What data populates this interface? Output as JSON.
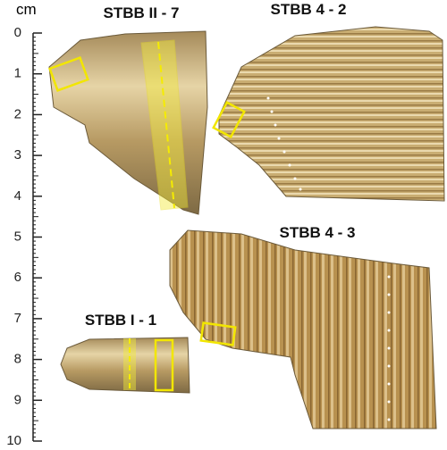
{
  "scale": {
    "unit": "cm",
    "ticks": [
      0,
      1,
      2,
      3,
      4,
      5,
      6,
      7,
      8,
      9,
      10
    ]
  },
  "samples": [
    {
      "label": "STBB II - 7"
    },
    {
      "label": "STBB 4 - 2"
    },
    {
      "label": "STBB 4 - 3"
    },
    {
      "label": "STBB I - 1"
    }
  ]
}
